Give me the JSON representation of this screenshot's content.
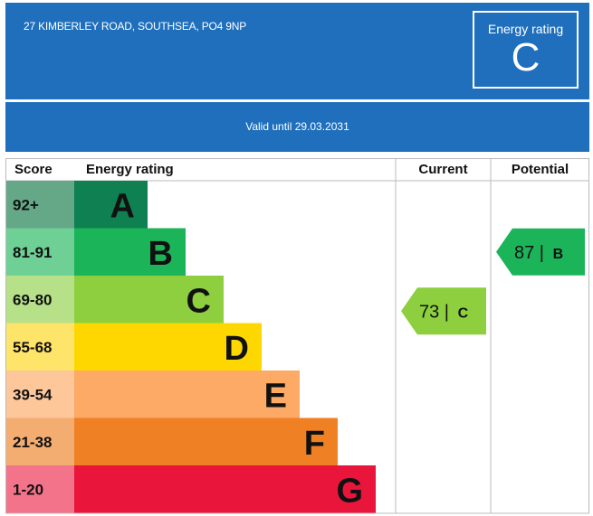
{
  "header": {
    "address": "27 KIMBERLEY ROAD, SOUTHSEA, PO4 9NP",
    "rating_label": "Energy rating",
    "rating_value": "C",
    "valid_until": "Valid until 29.03.2031",
    "background_color": "#1f6fbd"
  },
  "chart_data": {
    "type": "table",
    "columns": [
      "Score",
      "Energy rating",
      "Current",
      "Potential"
    ],
    "bands": [
      {
        "score": "92+",
        "letter": "A",
        "color": "#0f8052",
        "score_bg": "#64a888"
      },
      {
        "score": "81-91",
        "letter": "B",
        "color": "#1cb459",
        "score_bg": "#6fd095"
      },
      {
        "score": "69-80",
        "letter": "C",
        "color": "#8dcf3e",
        "score_bg": "#b6e189"
      },
      {
        "score": "55-68",
        "letter": "D",
        "color": "#ffd700",
        "score_bg": "#ffe46a"
      },
      {
        "score": "39-54",
        "letter": "E",
        "color": "#fcaa65",
        "score_bg": "#fdc79a"
      },
      {
        "score": "21-38",
        "letter": "F",
        "color": "#ef8023",
        "score_bg": "#f4ad71"
      },
      {
        "score": "1-20",
        "letter": "G",
        "color": "#e9153b",
        "score_bg": "#f2738a"
      }
    ],
    "current": {
      "value": 73,
      "letter": "C",
      "band": "C",
      "color": "#8dcf3e"
    },
    "potential": {
      "value": 87,
      "letter": "B",
      "band": "B",
      "color": "#1cb459"
    }
  }
}
